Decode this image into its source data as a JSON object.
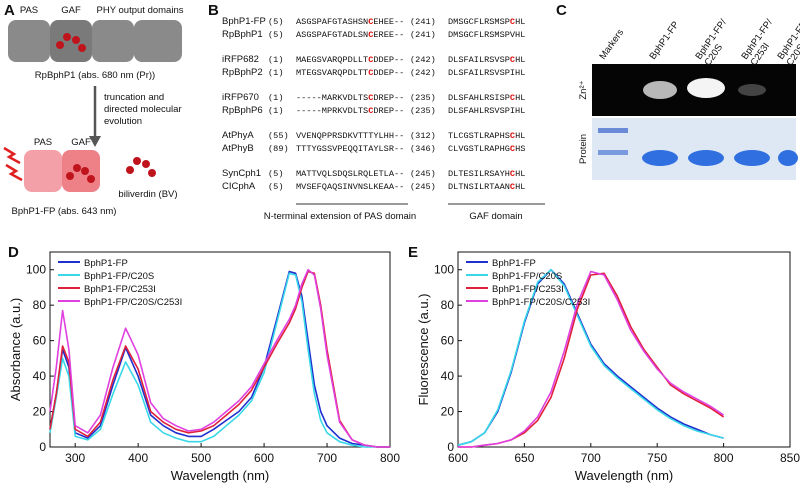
{
  "panel_a": {
    "label": "A",
    "domains": [
      "PAS",
      "GAF",
      "PHY output domains"
    ],
    "protein": "RpBphP1 (abs. 680 nm (Pr))",
    "step": [
      "truncation and",
      "directed molecular",
      "evolution"
    ],
    "fp_domains": [
      "PAS",
      "GAF"
    ],
    "ligand": "biliverdin (BV)",
    "product": "BphP1-FP (abs. 643 nm)"
  },
  "panel_b": {
    "label": "B",
    "rows": [
      {
        "name": "BphP1-FP",
        "start": "(5)",
        "seq": [
          "ASGSPAFGTASHSN",
          "C",
          "EHEE--"
        ],
        "pos2": "(241)",
        "seq2": [
          "DMSGCFLRSMSP",
          "C",
          "HL"
        ]
      },
      {
        "name": "RpBphP1",
        "start": "(5)",
        "seq": [
          "ASGSPAFGTADLSN",
          "C",
          "EREE--"
        ],
        "pos2": "(241)",
        "seq2": [
          "DMSGCFLRSMSPVHL"
        ]
      },
      {
        "name": "iRFP682",
        "start": "(1)",
        "seq": [
          "MAEGSVARQPDLLT",
          "C",
          "DDEP--"
        ],
        "pos2": "(242)",
        "seq2": [
          "DLSFAILRSVSP",
          "C",
          "HL"
        ]
      },
      {
        "name": "RpBphP2",
        "start": "(1)",
        "seq": [
          "MTEGSVARQPDLTT",
          "C",
          "DDEP--"
        ],
        "pos2": "(242)",
        "seq2": [
          "DLSFAILRSVSPIHL"
        ]
      },
      {
        "name": "iRFP670",
        "start": "(1)",
        "seq": [
          "-----MARKVDLTS",
          "C",
          "DREP--"
        ],
        "pos2": "(235)",
        "seq2": [
          "DLSFAHLRSISP",
          "C",
          "HL"
        ]
      },
      {
        "name": "RpBphP6",
        "start": "(1)",
        "seq": [
          "-----MPRKVDLTS",
          "C",
          "DREP--"
        ],
        "pos2": "(235)",
        "seq2": [
          "DLSFAHLRSVSPIHL"
        ]
      },
      {
        "name": "AtPhyA",
        "start": "(55)",
        "seq": [
          "VVENQPPRSDKVTTTYLHH--"
        ],
        "pos2": "(312)",
        "seq2": [
          "TLCGSTLRAPHS",
          "C",
          "HL"
        ]
      },
      {
        "name": "AtPhyB",
        "start": "(89)",
        "seq": [
          "TTTYGSSVPEQQITAYLSR--"
        ],
        "pos2": "(346)",
        "seq2": [
          "CLVGSTLRAPHG",
          "C",
          "HS"
        ]
      },
      {
        "name": "SynCph1",
        "start": "(5)",
        "seq": [
          "MATTVQLSDQSLRQLETLA--"
        ],
        "pos2": "(245)",
        "seq2": [
          "DLTESILRSAYH",
          "C",
          "HL"
        ]
      },
      {
        "name": "CICphA",
        "start": "(5)",
        "seq": [
          "MVSEFQAQSINVNSLKEAA--"
        ],
        "pos2": "(245)",
        "seq2": [
          "DLTNSILRTAAN",
          "C",
          "HL"
        ]
      }
    ],
    "regions": [
      "N-terminal extension of PAS domain",
      "GAF domain"
    ]
  },
  "panel_c": {
    "label": "C",
    "lanes": [
      [
        "Markers"
      ],
      [
        "BphP1-FP"
      ],
      [
        "BphP1-FP/",
        "C20S"
      ],
      [
        "BphP1-FP/",
        "C253I"
      ],
      [
        "BphP1-FP/",
        "C20S/C253I"
      ]
    ],
    "rows": [
      "Zn²⁺",
      "Protein"
    ]
  },
  "chart_data": [
    {
      "type": "line",
      "panel": "D",
      "x_label": "Wavelength (nm)",
      "y_label": "Absorbance (a.u.)",
      "legend": "upper left",
      "x": [
        260,
        270,
        280,
        290,
        300,
        320,
        340,
        360,
        380,
        400,
        420,
        440,
        460,
        480,
        500,
        520,
        540,
        560,
        580,
        600,
        620,
        640,
        650,
        660,
        670,
        680,
        690,
        700,
        720,
        740,
        760,
        780,
        800
      ],
      "xlim": [
        260,
        800
      ],
      "ylim": [
        0,
        110
      ],
      "xticks": [
        300,
        400,
        500,
        600,
        700,
        800
      ],
      "yticks": [
        0,
        20,
        40,
        60,
        80,
        100
      ],
      "series": [
        {
          "name": "BphP1-FP",
          "color": "#1f2fd0",
          "values": [
            10,
            30,
            55,
            45,
            8,
            5,
            12,
            35,
            56,
            40,
            18,
            12,
            8,
            6,
            6,
            10,
            15,
            20,
            28,
            45,
            72,
            99,
            98,
            85,
            60,
            35,
            20,
            12,
            5,
            2,
            1,
            0,
            0
          ]
        },
        {
          "name": "BphP1-FP/C20S",
          "color": "#38d8e8",
          "values": [
            8,
            28,
            50,
            40,
            6,
            4,
            10,
            30,
            48,
            35,
            14,
            8,
            5,
            3,
            3,
            6,
            12,
            18,
            26,
            42,
            70,
            98,
            97,
            82,
            55,
            30,
            15,
            8,
            3,
            1,
            0,
            0,
            0
          ]
        },
        {
          "name": "BphP1-FP/C253I",
          "color": "#e0203a",
          "values": [
            10,
            30,
            57,
            48,
            10,
            6,
            14,
            38,
            57,
            44,
            20,
            14,
            10,
            8,
            9,
            12,
            18,
            24,
            32,
            45,
            58,
            70,
            78,
            90,
            99,
            98,
            80,
            55,
            15,
            4,
            1,
            0,
            0
          ]
        },
        {
          "name": "BphP1-FP/C20S/C253I",
          "color": "#e040e0",
          "values": [
            20,
            45,
            77,
            55,
            12,
            8,
            18,
            45,
            67,
            52,
            25,
            16,
            12,
            9,
            10,
            14,
            20,
            26,
            34,
            47,
            60,
            72,
            80,
            92,
            100,
            97,
            78,
            52,
            14,
            4,
            1,
            0,
            0
          ]
        }
      ]
    },
    {
      "type": "line",
      "panel": "E",
      "x_label": "Wavelength (nm)",
      "y_label": "Fluorescence (a.u.)",
      "legend": "upper left",
      "x": [
        600,
        610,
        620,
        630,
        640,
        650,
        660,
        670,
        680,
        690,
        700,
        710,
        720,
        730,
        740,
        750,
        760,
        770,
        780,
        790,
        800
      ],
      "xlim": [
        600,
        850
      ],
      "ylim": [
        0,
        110
      ],
      "xticks": [
        600,
        650,
        700,
        750,
        800,
        850
      ],
      "yticks": [
        0,
        20,
        40,
        60,
        80,
        100
      ],
      "series": [
        {
          "name": "BphP1-FP",
          "color": "#1f2fd0",
          "values": [
            1,
            3,
            8,
            20,
            42,
            70,
            92,
            100,
            92,
            75,
            58,
            47,
            40,
            34,
            28,
            22,
            17,
            13,
            10,
            7,
            5
          ]
        },
        {
          "name": "BphP1-FP/C20S",
          "color": "#38d8e8",
          "values": [
            1,
            3,
            8,
            21,
            43,
            71,
            93,
            100,
            91,
            74,
            57,
            46,
            39,
            33,
            27,
            21,
            16,
            12,
            9,
            7,
            5
          ]
        },
        {
          "name": "BphP1-FP/C253I",
          "color": "#e0203a",
          "values": [
            0,
            0,
            1,
            2,
            4,
            8,
            15,
            28,
            50,
            78,
            97,
            98,
            85,
            68,
            55,
            45,
            35,
            30,
            26,
            22,
            17
          ]
        },
        {
          "name": "BphP1-FP/C20S/C253I",
          "color": "#e040e0",
          "values": [
            0,
            0,
            1,
            2,
            4,
            9,
            17,
            31,
            54,
            81,
            99,
            97,
            83,
            66,
            54,
            44,
            36,
            31,
            27,
            23,
            18
          ]
        }
      ]
    }
  ]
}
